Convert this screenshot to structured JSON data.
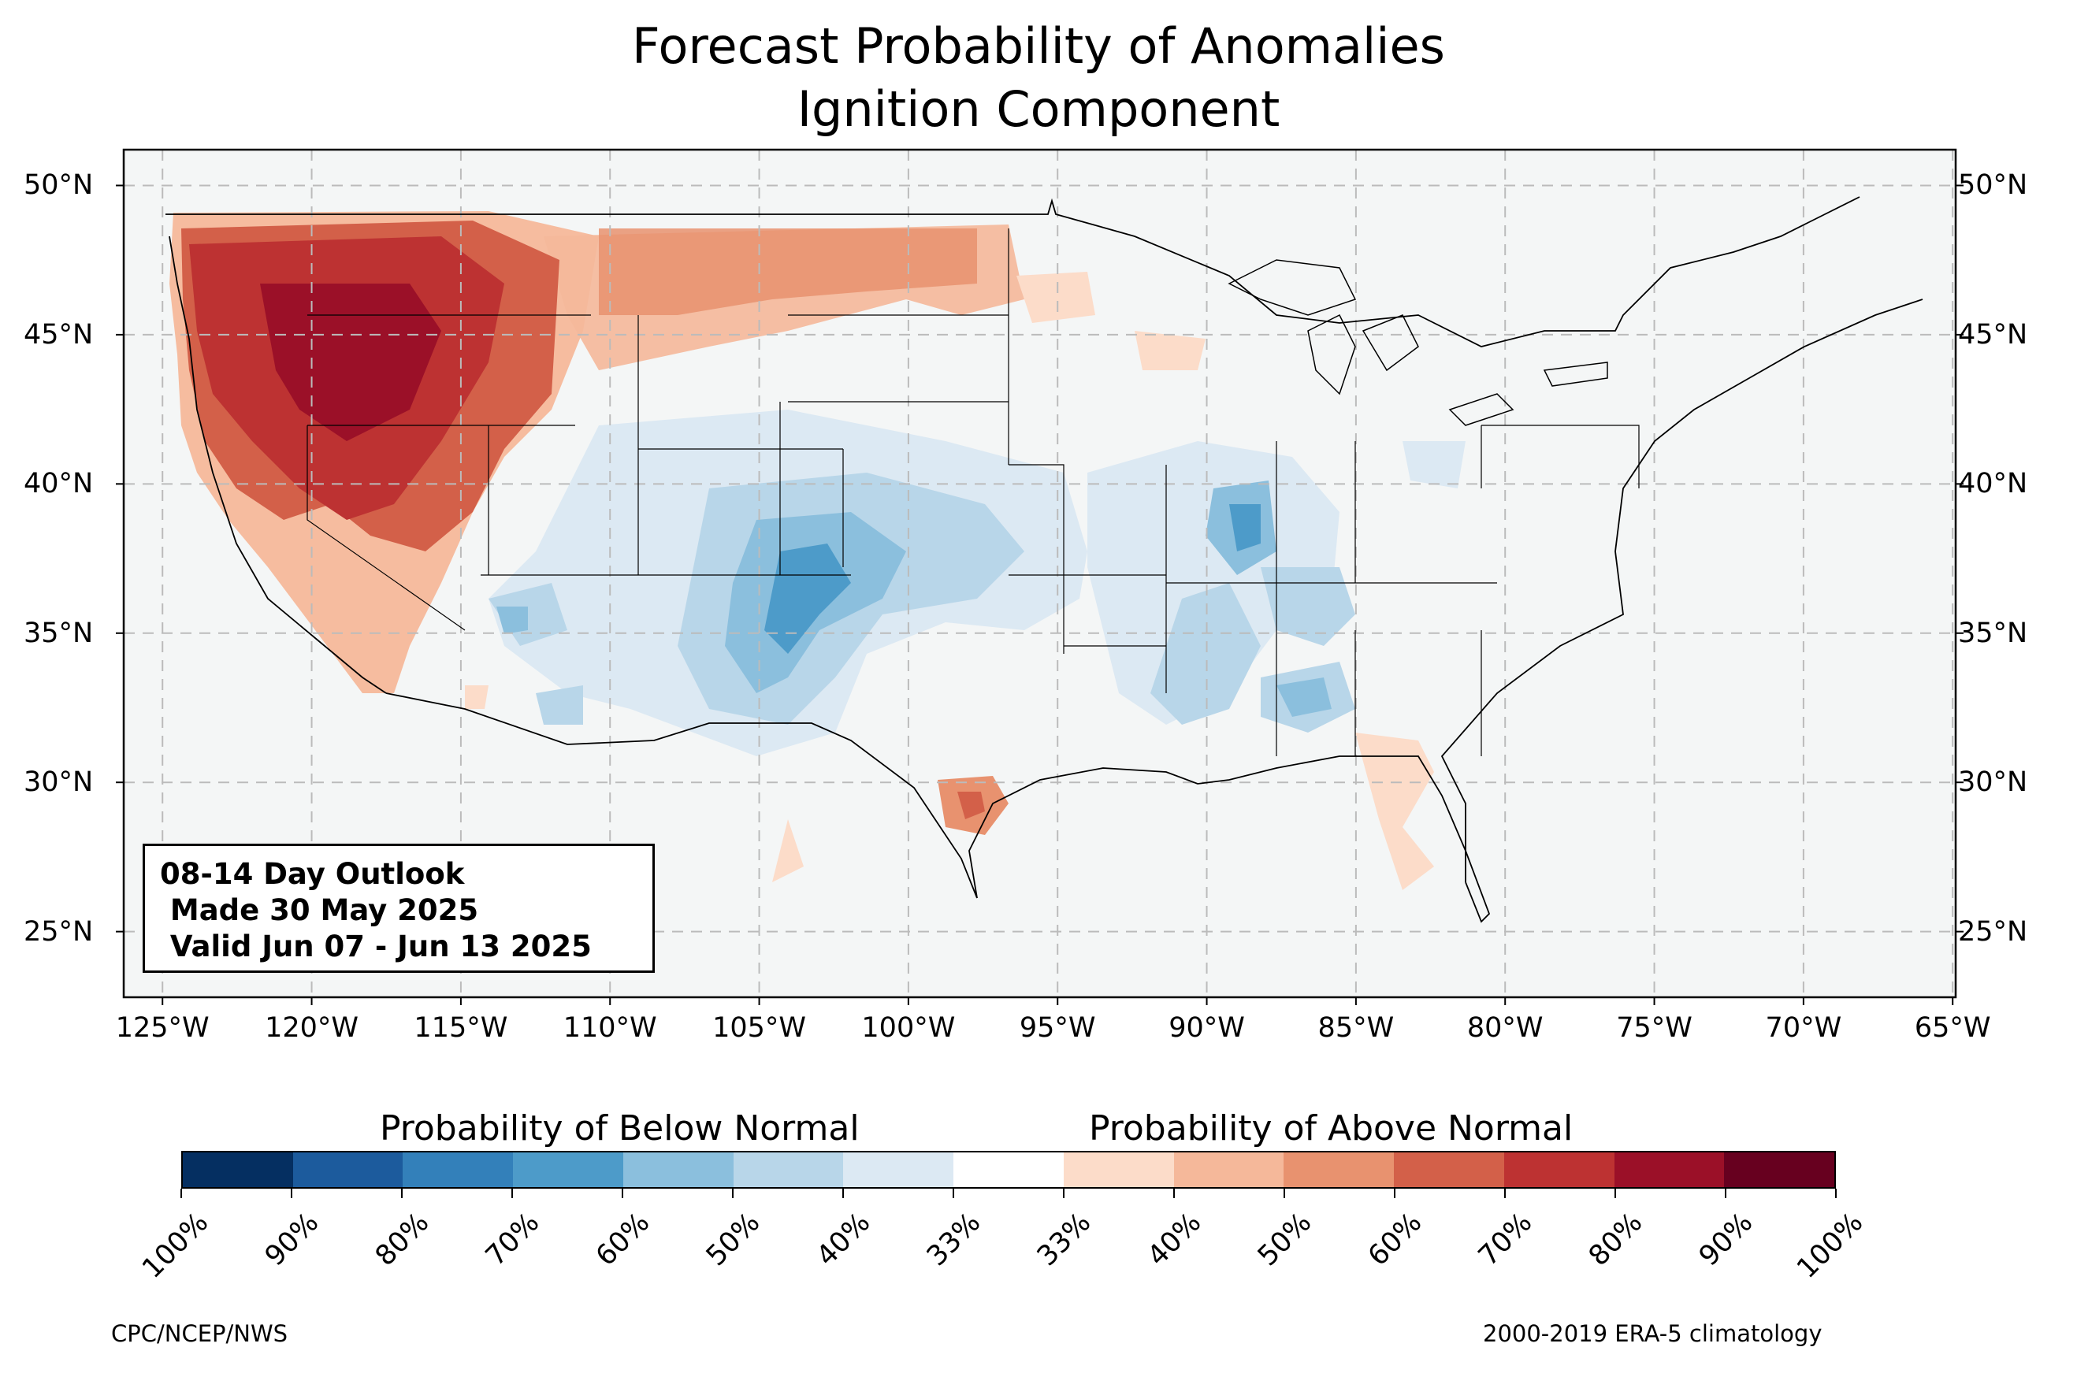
{
  "title": {
    "line1": "Forecast Probability of Anomalies",
    "line2": "Ignition Component"
  },
  "map": {
    "lat_labels": [
      "50°N",
      "45°N",
      "40°N",
      "35°N",
      "30°N",
      "25°N"
    ],
    "lon_labels": [
      "125°W",
      "120°W",
      "115°W",
      "110°W",
      "105°W",
      "100°W",
      "95°W",
      "90°W",
      "85°W",
      "80°W",
      "75°W",
      "70°W",
      "65°W"
    ],
    "lat_values": [
      50,
      45,
      40,
      35,
      30,
      25
    ],
    "lon_values": [
      -125,
      -120,
      -115,
      -110,
      -105,
      -100,
      -95,
      -90,
      -85,
      -80,
      -75,
      -70,
      -65
    ],
    "extent": {
      "lon_min": -126.3,
      "lon_max": -64.9,
      "lat_min": 22.8,
      "lat_max": 51.2
    },
    "gridlines": true,
    "background_color": "#f4f6f6"
  },
  "outlook_box": {
    "line1": "08-14 Day Outlook",
    "line2": " Made 30 May 2025",
    "line3": " Valid Jun 07 - Jun 13 2025"
  },
  "colorbar": {
    "below_label": "Probability of Below Normal",
    "above_label": "Probability of Above Normal",
    "tick_labels": [
      "100%",
      "90%",
      "80%",
      "70%",
      "60%",
      "50%",
      "40%",
      "33%",
      "33%",
      "40%",
      "50%",
      "60%",
      "70%",
      "80%",
      "90%",
      "100%"
    ],
    "colors": [
      "#052f61",
      "#1c5b9d",
      "#3380ba",
      "#4d9bc9",
      "#8bbfdd",
      "#b8d6e9",
      "#dce9f3",
      "#ffffff",
      "#fcdcc9",
      "#f5b89a",
      "#e8926f",
      "#d36049",
      "#bd3232",
      "#9b1028",
      "#67001f"
    ]
  },
  "footer": {
    "left": "CPC/NCEP/NWS",
    "right": "2000-2019 ERA-5 climatology"
  }
}
